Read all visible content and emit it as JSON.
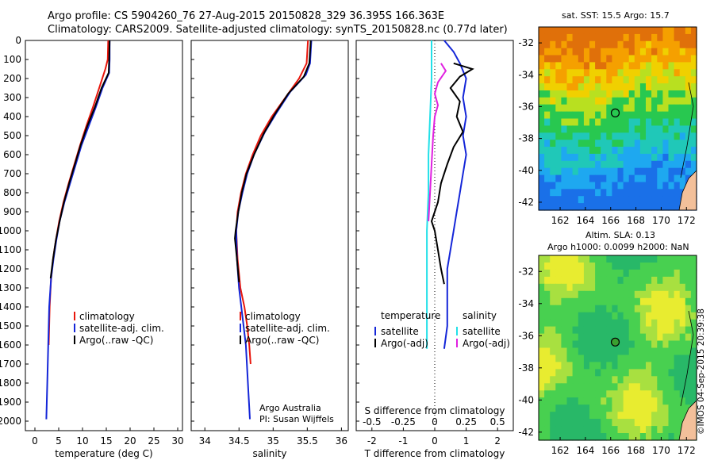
{
  "header": {
    "line1": "Argo profile: CS 5904260_76 27-Aug-2015 20150828_329 36.395S 166.363E",
    "line2": "Climatology: CARS2009. Satellite-adjusted climatology: synTS_20150828.nc (0.77d later)"
  },
  "map_sst": {
    "title": "sat. SST: 15.5 Argo: 15.7",
    "xticks": [
      "162",
      "164",
      "166",
      "168",
      "170",
      "172"
    ],
    "yticks": [
      "-32",
      "-34",
      "-36",
      "-38",
      "-40",
      "-42"
    ]
  },
  "map_sla": {
    "title1": "Altim. SLA: 0.13",
    "title2": "Argo h1000: 0.0099 h2000: NaN",
    "xticks": [
      "162",
      "164",
      "166",
      "168",
      "170",
      "172"
    ],
    "yticks": [
      "-32",
      "-34",
      "-36",
      "-38",
      "-40",
      "-42"
    ]
  },
  "watermark": "©IMOS 04-Sep-2015 20:39:38",
  "colors": {
    "climatology": "#e8160c",
    "satellite": "#1426d8",
    "argo": "#000000",
    "satellite_s": "#22e0e8",
    "argo_s": "#e020e0"
  },
  "chart_data": [
    {
      "type": "line",
      "xlabel": "temperature (deg C)",
      "ylabel": "",
      "xlim": [
        -2,
        31
      ],
      "ylim": [
        2050,
        0
      ],
      "xticks": [
        "0",
        "5",
        "10",
        "15",
        "20",
        "25",
        "30"
      ],
      "yticks": [
        "0",
        "100",
        "200",
        "300",
        "400",
        "500",
        "600",
        "700",
        "800",
        "900",
        "1000",
        "1100",
        "1200",
        "1300",
        "1400",
        "1500",
        "1600",
        "1700",
        "1800",
        "1900",
        "2000"
      ],
      "legend": [
        "climatology",
        "satellite-adj. clim.",
        "Argo(..raw -QC)"
      ],
      "series": [
        {
          "name": "climatology",
          "points": [
            [
              15.4,
              0
            ],
            [
              15.3,
              100
            ],
            [
              14.8,
              150
            ],
            [
              13.5,
              250
            ],
            [
              12.2,
              350
            ],
            [
              10.8,
              450
            ],
            [
              9.5,
              550
            ],
            [
              8.3,
              650
            ],
            [
              7.1,
              750
            ],
            [
              6.0,
              850
            ],
            [
              5.1,
              950
            ],
            [
              4.4,
              1050
            ],
            [
              3.8,
              1150
            ],
            [
              3.4,
              1250
            ],
            [
              3.1,
              1400
            ],
            [
              2.9,
              1600
            ]
          ]
        },
        {
          "name": "satellite-adj. clim.",
          "points": [
            [
              15.7,
              0
            ],
            [
              15.7,
              100
            ],
            [
              15.6,
              170
            ],
            [
              14.2,
              250
            ],
            [
              12.8,
              350
            ],
            [
              11.3,
              450
            ],
            [
              9.8,
              550
            ],
            [
              8.6,
              650
            ],
            [
              7.4,
              750
            ],
            [
              6.2,
              850
            ],
            [
              5.2,
              950
            ],
            [
              4.5,
              1050
            ],
            [
              3.9,
              1150
            ],
            [
              3.4,
              1250
            ],
            [
              3.0,
              1400
            ],
            [
              2.8,
              1600
            ],
            [
              2.6,
              1800
            ],
            [
              2.4,
              1990
            ]
          ]
        },
        {
          "name": "Argo(..raw -QC)",
          "points": [
            [
              15.7,
              0
            ],
            [
              15.6,
              100
            ],
            [
              15.5,
              170
            ],
            [
              14.0,
              250
            ],
            [
              12.6,
              350
            ],
            [
              11.0,
              450
            ],
            [
              9.6,
              550
            ],
            [
              8.4,
              650
            ],
            [
              7.2,
              750
            ],
            [
              6.1,
              850
            ],
            [
              5.2,
              950
            ],
            [
              4.4,
              1050
            ],
            [
              3.8,
              1150
            ],
            [
              3.3,
              1250
            ]
          ]
        }
      ]
    },
    {
      "type": "line",
      "xlabel": "salinity",
      "ylabel": "",
      "xlim": [
        33.8,
        36.1
      ],
      "ylim": [
        2050,
        0
      ],
      "xticks": [
        "34",
        "34.5",
        "35",
        "35.5",
        "36"
      ],
      "legend": [
        "climatology",
        "satellite-adj. clim.",
        "Argo(..raw -QC)"
      ],
      "series": [
        {
          "name": "climatology",
          "points": [
            [
              35.51,
              0
            ],
            [
              35.49,
              120
            ],
            [
              35.38,
              200
            ],
            [
              35.18,
              300
            ],
            [
              34.98,
              400
            ],
            [
              34.82,
              500
            ],
            [
              34.7,
              600
            ],
            [
              34.6,
              700
            ],
            [
              34.53,
              800
            ],
            [
              34.48,
              900
            ],
            [
              34.46,
              1000
            ],
            [
              34.48,
              1150
            ],
            [
              34.52,
              1300
            ],
            [
              34.58,
              1400
            ],
            [
              34.62,
              1500
            ],
            [
              34.65,
              1600
            ],
            [
              34.67,
              1700
            ]
          ]
        },
        {
          "name": "satellite-adj. clim.",
          "points": [
            [
              35.56,
              0
            ],
            [
              35.54,
              120
            ],
            [
              35.48,
              180
            ],
            [
              35.25,
              270
            ],
            [
              35.05,
              380
            ],
            [
              34.88,
              480
            ],
            [
              34.72,
              600
            ],
            [
              34.62,
              700
            ],
            [
              34.55,
              800
            ],
            [
              34.49,
              900
            ],
            [
              34.46,
              1000
            ],
            [
              34.47,
              1150
            ],
            [
              34.5,
              1300
            ],
            [
              34.55,
              1450
            ],
            [
              34.6,
              1600
            ],
            [
              34.63,
              1800
            ],
            [
              34.66,
              1990
            ]
          ]
        },
        {
          "name": "Argo(..raw -QC)",
          "points": [
            [
              35.55,
              0
            ],
            [
              35.53,
              120
            ],
            [
              35.45,
              190
            ],
            [
              35.22,
              280
            ],
            [
              35.02,
              390
            ],
            [
              34.86,
              490
            ],
            [
              34.72,
              600
            ],
            [
              34.61,
              700
            ],
            [
              34.54,
              800
            ],
            [
              34.49,
              900
            ],
            [
              34.45,
              1000
            ],
            [
              34.44,
              1040
            ],
            [
              34.47,
              1150
            ],
            [
              34.5,
              1270
            ]
          ]
        }
      ],
      "annotation1": "Argo Australia",
      "annotation2": "PI: Susan Wijffels"
    },
    {
      "type": "line",
      "xlabel": "T difference from climatology",
      "xlabel_top": "S difference from climatology",
      "xlim": [
        -2.5,
        2.5
      ],
      "ylim": [
        2050,
        0
      ],
      "xticks": [
        "-2",
        "-1",
        "0",
        "1",
        "2"
      ],
      "xticks_top": [
        "-0.5",
        "-0.25",
        "0",
        "0.25",
        "0.5"
      ],
      "legend_t_title": "temperature",
      "legend_s_title": "salinity",
      "legend_t": [
        "satellite",
        "Argo(-adj)"
      ],
      "legend_s": [
        "satellite",
        "Argo(-adj)"
      ],
      "series": [
        {
          "name": "satellite",
          "points": [
            [
              0.3,
              0
            ],
            [
              0.6,
              60
            ],
            [
              0.8,
              120
            ],
            [
              1.0,
              200
            ],
            [
              0.9,
              300
            ],
            [
              1.0,
              400
            ],
            [
              0.9,
              500
            ],
            [
              1.0,
              600
            ],
            [
              0.9,
              700
            ],
            [
              0.8,
              800
            ],
            [
              0.7,
              900
            ],
            [
              0.6,
              1000
            ],
            [
              0.5,
              1100
            ],
            [
              0.4,
              1200
            ],
            [
              0.4,
              1300
            ],
            [
              0.4,
              1500
            ],
            [
              0.3,
              1620
            ]
          ]
        },
        {
          "name": "Argo(-adj)",
          "points": [
            [
              0.6,
              120
            ],
            [
              1.2,
              150
            ],
            [
              0.8,
              190
            ],
            [
              0.5,
              250
            ],
            [
              0.8,
              320
            ],
            [
              0.7,
              400
            ],
            [
              0.9,
              480
            ],
            [
              0.6,
              560
            ],
            [
              0.4,
              650
            ],
            [
              0.2,
              750
            ],
            [
              0.1,
              850
            ],
            [
              0.0,
              900
            ],
            [
              -0.1,
              950
            ],
            [
              0.0,
              1000
            ],
            [
              0.1,
              1100
            ],
            [
              0.2,
              1200
            ],
            [
              0.3,
              1280
            ]
          ]
        },
        {
          "name": "satellite",
          "points": [
            [
              -0.1,
              0
            ],
            [
              -0.1,
              100
            ],
            [
              -0.1,
              200
            ],
            [
              -0.15,
              400
            ],
            [
              -0.2,
              600
            ],
            [
              -0.2,
              800
            ],
            [
              -0.25,
              1000
            ],
            [
              -0.25,
              1200
            ],
            [
              -0.25,
              1400
            ],
            [
              -0.25,
              1620
            ]
          ]
        },
        {
          "name": "Argo(-adj)",
          "points": [
            [
              0.2,
              120
            ],
            [
              0.35,
              160
            ],
            [
              0.1,
              220
            ],
            [
              0.0,
              280
            ],
            [
              0.1,
              340
            ],
            [
              0.0,
              400
            ],
            [
              -0.05,
              500
            ],
            [
              -0.1,
              650
            ],
            [
              -0.15,
              800
            ],
            [
              -0.2,
              950
            ]
          ]
        }
      ]
    }
  ]
}
